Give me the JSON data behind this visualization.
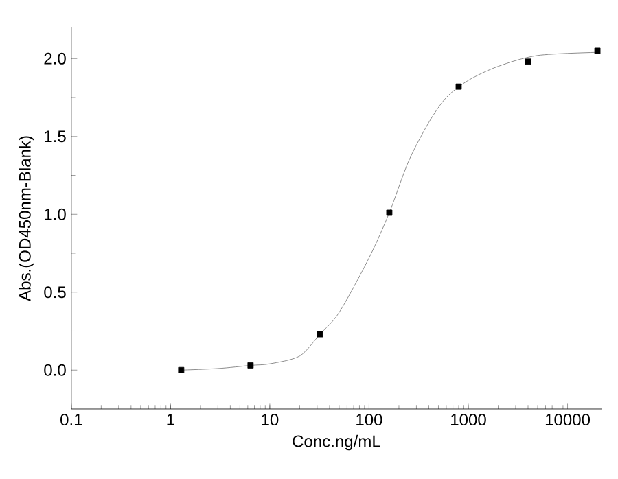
{
  "chart_data": {
    "type": "scatter",
    "xlabel": "Conc.ng/mL",
    "ylabel": "Abs.(OD450nm-Blank)",
    "log": "x",
    "grid": false,
    "xlim": [
      0.1,
      22000
    ],
    "ylim": [
      -0.25,
      2.2
    ],
    "xticks": [
      0.1,
      1,
      10,
      100,
      1000,
      10000
    ],
    "yticks": [
      {
        "value": 0,
        "label": "0.0"
      },
      {
        "value": 0.5,
        "label": "0.5"
      },
      {
        "value": 1,
        "label": "1.0"
      },
      {
        "value": 1.5,
        "label": "1.5"
      },
      {
        "value": 2,
        "label": "2.0"
      }
    ],
    "series": [
      {
        "type": "line",
        "color": "#707070",
        "marker": "none",
        "line_style": "solid",
        "x": [
          1.28,
          3,
          6.4,
          10,
          20,
          32,
          50,
          100,
          160,
          250,
          400,
          600,
          1000,
          2000,
          5000,
          20000
        ],
        "values": [
          0.0,
          0.01,
          0.03,
          0.04,
          0.09,
          0.23,
          0.37,
          0.72,
          1.01,
          1.34,
          1.59,
          1.75,
          1.86,
          1.95,
          2.02,
          2.04
        ]
      },
      {
        "color": "#000000",
        "marker": "square",
        "x": [
          1.28,
          6.4,
          32,
          160,
          800,
          4000,
          20000
        ],
        "values": [
          0.0,
          0.03,
          0.23,
          1.01,
          1.82,
          1.98,
          2.05
        ]
      }
    ]
  }
}
